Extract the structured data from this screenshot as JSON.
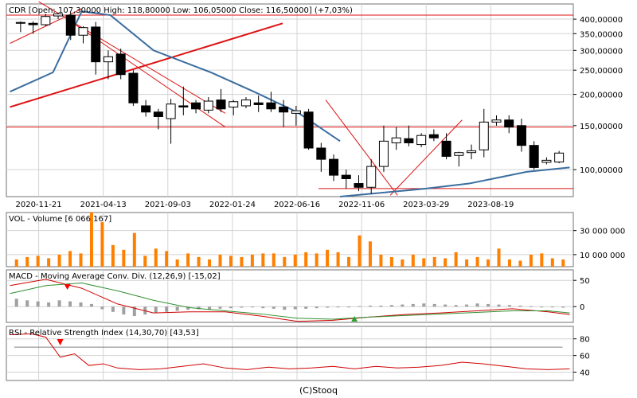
{
  "chart_data": [
    {
      "type": "candlestick",
      "title": "CDR [Open: 107,30000  High: 118,80000  Low: 106,05000  Close: 116,50000] (+7,03%)",
      "scale": "log",
      "grid": true,
      "ylim": [
        78,
        460
      ],
      "y_ticks": [
        {
          "v": 100,
          "label": "100,00000"
        },
        {
          "v": 150,
          "label": "150,00000"
        },
        {
          "v": 200,
          "label": "200,00000"
        },
        {
          "v": 250,
          "label": "250,00000"
        },
        {
          "v": 300,
          "label": "300,00000"
        },
        {
          "v": 350,
          "label": "350,00000"
        },
        {
          "v": 400,
          "label": "400,00000"
        }
      ],
      "x_ticks": [
        "2020-11-21",
        "2021-04-13",
        "2021-09-03",
        "2022-01-24",
        "2022-06-16",
        "2022-11-06",
        "2023-03-29",
        "2023-08-19"
      ],
      "x_tick_index": [
        4,
        13,
        22,
        31,
        40,
        49,
        58,
        67
      ],
      "candles": [
        {
          "o": 385,
          "h": 392,
          "l": 355,
          "c": 388
        },
        {
          "o": 385,
          "h": 392,
          "l": 350,
          "c": 380
        },
        {
          "o": 380,
          "h": 420,
          "l": 375,
          "c": 410
        },
        {
          "o": 412,
          "h": 425,
          "l": 400,
          "c": 420
        },
        {
          "o": 415,
          "h": 425,
          "l": 330,
          "c": 345
        },
        {
          "o": 345,
          "h": 375,
          "l": 320,
          "c": 370
        },
        {
          "o": 372,
          "h": 390,
          "l": 240,
          "c": 270
        },
        {
          "o": 270,
          "h": 300,
          "l": 230,
          "c": 283
        },
        {
          "o": 290,
          "h": 305,
          "l": 230,
          "c": 240
        },
        {
          "o": 243,
          "h": 250,
          "l": 180,
          "c": 185
        },
        {
          "o": 180,
          "h": 190,
          "l": 163,
          "c": 170
        },
        {
          "o": 170,
          "h": 175,
          "l": 145,
          "c": 163
        },
        {
          "o": 160,
          "h": 192,
          "l": 127,
          "c": 183
        },
        {
          "o": 180,
          "h": 215,
          "l": 165,
          "c": 178
        },
        {
          "o": 185,
          "h": 190,
          "l": 168,
          "c": 175
        },
        {
          "o": 173,
          "h": 195,
          "l": 168,
          "c": 188
        },
        {
          "o": 190,
          "h": 210,
          "l": 170,
          "c": 175
        },
        {
          "o": 178,
          "h": 190,
          "l": 165,
          "c": 187
        },
        {
          "o": 180,
          "h": 195,
          "l": 176,
          "c": 190
        },
        {
          "o": 185,
          "h": 198,
          "l": 170,
          "c": 182
        },
        {
          "o": 185,
          "h": 205,
          "l": 170,
          "c": 175
        },
        {
          "o": 178,
          "h": 190,
          "l": 148,
          "c": 170
        },
        {
          "o": 168,
          "h": 180,
          "l": 150,
          "c": 172
        },
        {
          "o": 170,
          "h": 175,
          "l": 120,
          "c": 122
        },
        {
          "o": 122,
          "h": 128,
          "l": 98,
          "c": 110
        },
        {
          "o": 110,
          "h": 115,
          "l": 90,
          "c": 95
        },
        {
          "o": 95,
          "h": 100,
          "l": 84,
          "c": 92
        },
        {
          "o": 88,
          "h": 95,
          "l": 82,
          "c": 85
        },
        {
          "o": 85,
          "h": 110,
          "l": 80,
          "c": 103
        },
        {
          "o": 103,
          "h": 150,
          "l": 98,
          "c": 130
        },
        {
          "o": 128,
          "h": 148,
          "l": 120,
          "c": 134
        },
        {
          "o": 133,
          "h": 150,
          "l": 124,
          "c": 128
        },
        {
          "o": 126,
          "h": 140,
          "l": 123,
          "c": 137
        },
        {
          "o": 138,
          "h": 145,
          "l": 130,
          "c": 134
        },
        {
          "o": 130,
          "h": 140,
          "l": 110,
          "c": 113
        },
        {
          "o": 114,
          "h": 118,
          "l": 103,
          "c": 117
        },
        {
          "o": 117,
          "h": 126,
          "l": 110,
          "c": 119
        },
        {
          "o": 120,
          "h": 175,
          "l": 112,
          "c": 155
        },
        {
          "o": 155,
          "h": 165,
          "l": 150,
          "c": 158
        },
        {
          "o": 158,
          "h": 165,
          "l": 140,
          "c": 148
        },
        {
          "o": 150,
          "h": 160,
          "l": 118,
          "c": 125
        },
        {
          "o": 125,
          "h": 130,
          "l": 100,
          "c": 102
        },
        {
          "o": 107,
          "h": 112,
          "l": 105,
          "c": 109
        },
        {
          "o": 107.3,
          "h": 118.8,
          "l": 106.05,
          "c": 116.5
        }
      ],
      "moving_average": [
        {
          "i": 0,
          "v": 205
        },
        {
          "i": 6,
          "v": 245
        },
        {
          "i": 10,
          "v": 430
        },
        {
          "i": 14,
          "v": 415
        },
        {
          "i": 20,
          "v": 300
        },
        {
          "i": 28,
          "v": 245
        },
        {
          "i": 34,
          "v": 205
        },
        {
          "i": 40,
          "v": 170
        },
        {
          "i": 46,
          "v": 130
        }
      ],
      "moving_average_2": [
        {
          "i": 46,
          "v": 78
        },
        {
          "i": 58,
          "v": 84
        },
        {
          "i": 64,
          "v": 88
        },
        {
          "i": 72,
          "v": 98
        },
        {
          "i": 78,
          "v": 102
        }
      ],
      "horizontal_lines": [
        415,
        148,
        84
      ],
      "trend_lines": [
        {
          "x0": 0,
          "y0": 320,
          "x1": 10,
          "y1": 440,
          "width": 1
        },
        {
          "x0": 0,
          "y0": 178,
          "x1": 38,
          "y1": 385,
          "width": 2
        },
        {
          "x0": 8,
          "y0": 400,
          "x1": 30,
          "y1": 148,
          "width": 1
        },
        {
          "x0": 4,
          "y0": 470,
          "x1": 30,
          "y1": 168,
          "width": 1
        },
        {
          "x0": 44,
          "y0": 190,
          "x1": 54,
          "y1": 79,
          "width": 1
        },
        {
          "x0": 53,
          "y0": 79,
          "x1": 63,
          "y1": 158,
          "width": 1
        }
      ]
    },
    {
      "type": "bar",
      "title": "VOL - Volume [6 066 167]",
      "ylim": [
        0,
        45000000
      ],
      "y_ticks": [
        {
          "v": 10000000,
          "label": "10 000 000"
        },
        {
          "v": 30000000,
          "label": "30 000 000"
        }
      ],
      "values": [
        6000000,
        8000000,
        9000000,
        7000000,
        10000000,
        13000000,
        11000000,
        45000000,
        37000000,
        18000000,
        14000000,
        28000000,
        9000000,
        15000000,
        13000000,
        6000000,
        11000000,
        8000000,
        6000000,
        10000000,
        9000000,
        8000000,
        10000000,
        11000000,
        11000000,
        8000000,
        10000000,
        12000000,
        11000000,
        14000000,
        12000000,
        8000000,
        26000000,
        21000000,
        10000000,
        8000000,
        6000000,
        10000000,
        7000000,
        8000000,
        7000000,
        12000000,
        6000000,
        8000000,
        6000000,
        15000000,
        6000000,
        5000000,
        10000000,
        11000000,
        7000000,
        6000000
      ]
    },
    {
      "type": "line",
      "title": "MACD - Moving Average Conv. Div. (12,26,9) [-15,02]",
      "ylim": [
        -30,
        70
      ],
      "y_ticks": [
        {
          "v": 0,
          "label": "0"
        },
        {
          "v": 50,
          "label": "50"
        }
      ],
      "series": [
        {
          "name": "MACD",
          "color": "#d00000",
          "x": [
            0,
            5,
            10,
            15,
            20,
            25,
            30,
            35,
            40,
            45,
            50,
            55,
            60,
            65,
            70,
            75,
            78
          ],
          "values": [
            40,
            52,
            35,
            5,
            -12,
            -10,
            -10,
            -18,
            -28,
            -26,
            -20,
            -15,
            -12,
            -8,
            -4,
            -10,
            -15
          ]
        },
        {
          "name": "Signal",
          "color": "#2f8f2f",
          "x": [
            0,
            5,
            10,
            15,
            20,
            25,
            30,
            35,
            40,
            45,
            50,
            55,
            60,
            65,
            70,
            75,
            78
          ],
          "values": [
            25,
            40,
            45,
            30,
            12,
            -2,
            -8,
            -14,
            -22,
            -24,
            -20,
            -17,
            -14,
            -11,
            -8,
            -8,
            -12
          ]
        }
      ],
      "histogram": [
        15,
        12,
        10,
        8,
        12,
        10,
        8,
        5,
        -5,
        -10,
        -15,
        -18,
        -15,
        -12,
        -10,
        -8,
        -6,
        -5,
        -6,
        -4,
        -3,
        -2,
        -1,
        -3,
        -4,
        -6,
        -5,
        -4,
        -3,
        -2,
        -1,
        0,
        1,
        2,
        2,
        3,
        4,
        5,
        6,
        5,
        4,
        3,
        4,
        6,
        5,
        4,
        3,
        2,
        1,
        0,
        -1,
        -2
      ],
      "markers": [
        {
          "x": 8,
          "dir": "down",
          "color": "#ff0000"
        },
        {
          "x": 48,
          "dir": "up",
          "color": "#2fa02f"
        }
      ]
    },
    {
      "type": "line",
      "title": "RSI - Relative Strength Index (14,30,70) [43,53]",
      "ylim": [
        30,
        95
      ],
      "y_ticks": [
        {
          "v": 40,
          "label": "40"
        },
        {
          "v": 60,
          "label": "60"
        },
        {
          "v": 80,
          "label": "80"
        }
      ],
      "guide_lines": [
        70
      ],
      "series": [
        {
          "name": "RSI",
          "color": "#d00000",
          "x": [
            0,
            3,
            5,
            7,
            9,
            11,
            13,
            15,
            18,
            21,
            24,
            27,
            30,
            33,
            36,
            39,
            42,
            45,
            48,
            51,
            54,
            57,
            60,
            63,
            66,
            69,
            72,
            75,
            78
          ],
          "values": [
            85,
            86,
            82,
            58,
            62,
            48,
            50,
            45,
            43,
            44,
            47,
            50,
            45,
            43,
            46,
            44,
            45,
            47,
            44,
            47,
            45,
            46,
            48,
            52,
            50,
            47,
            44,
            43,
            44
          ]
        }
      ],
      "markers": [
        {
          "x": 7,
          "dir": "down",
          "color": "#ff0000"
        }
      ]
    }
  ],
  "footer": "(C)Stooq",
  "colors": {
    "grid": "#d3d3d3",
    "frame": "#707070",
    "bull_fill": "#ffffff",
    "bear_fill": "#000000",
    "trend": "#dd1111",
    "ma": "#3a6d9f",
    "volume": "#ff8000",
    "macd_hist": "#a0a0a0"
  }
}
